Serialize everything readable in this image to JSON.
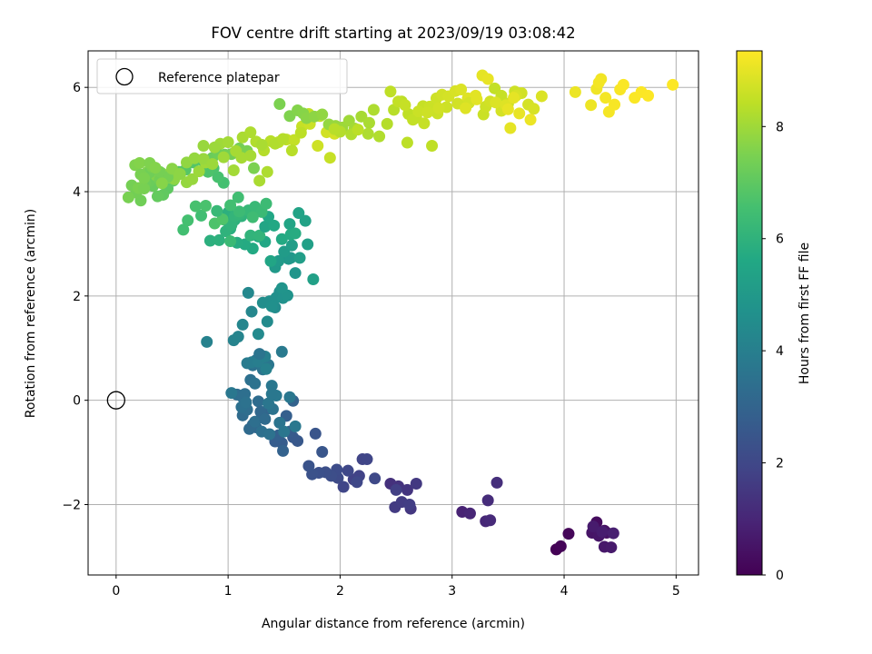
{
  "chart_data": {
    "type": "scatter",
    "title": "FOV centre drift starting at 2023/09/19 03:08:42",
    "xlabel": "Angular distance from reference (arcmin)",
    "ylabel": "Rotation from reference (arcmin)",
    "xlim": [
      -0.25,
      5.2
    ],
    "ylim": [
      -3.35,
      6.7
    ],
    "xticks": [
      0,
      1,
      2,
      3,
      4,
      5
    ],
    "yticks": [
      -2,
      0,
      2,
      4,
      6
    ],
    "ytick_labels": [
      "−2",
      "0",
      "2",
      "4",
      "6"
    ],
    "grid": true,
    "legend": {
      "position": "top-left",
      "entries": [
        "Reference platepar"
      ]
    },
    "reference_point": {
      "label": "Reference platepar",
      "x": 0.0,
      "y": 0.0,
      "marker": "open-circle"
    },
    "colorbar": {
      "label": "Hours from first FF file",
      "range": [
        0,
        9.35
      ],
      "ticks": [
        0,
        2,
        4,
        6,
        8
      ],
      "colormap": "viridis"
    },
    "series": [
      {
        "x": [
          3.93,
          3.97,
          4.04,
          4.27,
          4.29,
          4.33,
          4.36,
          4.38,
          4.25,
          4.31,
          4.36,
          4.42,
          4.26,
          4.34,
          4.44
        ],
        "y": [
          -2.86,
          -2.8,
          -2.56,
          -2.5,
          -2.34,
          -2.55,
          -2.5,
          -2.54,
          -2.54,
          -2.6,
          -2.81,
          -2.82,
          -2.42,
          -2.52,
          -2.55
        ],
        "c": [
          0.02,
          0.08,
          0.15,
          0.22,
          0.28,
          0.34,
          0.4,
          0.46,
          0.5,
          0.56,
          0.62,
          0.66,
          0.7,
          0.76,
          0.82
        ]
      },
      {
        "x": [
          3.09,
          3.16,
          3.3,
          3.34,
          3.32,
          3.4,
          2.45,
          2.52,
          2.6,
          2.63,
          2.68,
          2.49,
          2.55,
          2.62,
          2.5
        ],
        "y": [
          -2.14,
          -2.17,
          -2.32,
          -2.3,
          -1.92,
          -1.58,
          -1.6,
          -1.65,
          -1.72,
          -2.08,
          -1.6,
          -2.05,
          -1.95,
          -2.0,
          -1.72
        ],
        "c": [
          0.9,
          0.98,
          1.06,
          1.12,
          1.18,
          1.25,
          1.32,
          1.38,
          1.44,
          1.5,
          1.55,
          1.6,
          1.65,
          1.7,
          1.75
        ]
      },
      {
        "x": [
          2.12,
          2.17,
          2.2,
          2.24,
          2.15,
          2.31,
          1.98,
          1.97,
          1.92,
          1.87,
          1.81,
          1.75,
          1.72,
          1.78,
          1.84,
          2.03,
          2.07
        ],
        "y": [
          -1.52,
          -1.45,
          -1.13,
          -1.13,
          -1.57,
          -1.5,
          -1.49,
          -1.33,
          -1.45,
          -1.38,
          -1.39,
          -1.42,
          -1.26,
          -0.64,
          -0.99,
          -1.66,
          -1.35
        ],
        "c": [
          1.8,
          1.85,
          1.9,
          1.95,
          2.0,
          2.05,
          2.1,
          2.15,
          2.2,
          2.25,
          2.3,
          2.35,
          2.4,
          2.45,
          2.5,
          1.95,
          2.0
        ]
      },
      {
        "x": [
          1.62,
          1.58,
          1.55,
          1.48,
          1.42,
          1.52,
          1.45,
          1.49,
          1.58,
          1.36,
          1.3,
          1.25,
          1.22,
          1.19,
          1.13,
          1.27,
          1.17,
          1.24,
          1.3,
          1.37,
          1.4,
          1.46,
          1.5,
          1.55,
          1.6,
          1.29,
          1.33
        ],
        "y": [
          -0.78,
          -0.71,
          -0.6,
          -0.82,
          -0.79,
          -0.3,
          -0.67,
          -0.97,
          -0.01,
          -0.16,
          -0.33,
          -0.52,
          -0.47,
          -0.55,
          -0.29,
          -0.02,
          -0.18,
          -0.41,
          -0.6,
          -0.65,
          -0.17,
          -0.43,
          -0.6,
          0.06,
          -0.5,
          -0.22,
          -0.36
        ],
        "c": [
          2.55,
          2.6,
          2.65,
          2.7,
          2.75,
          2.8,
          2.85,
          2.9,
          2.95,
          3.0,
          3.05,
          3.1,
          3.15,
          3.2,
          3.25,
          3.3,
          3.35,
          3.4,
          3.45,
          3.5,
          3.55,
          3.6,
          3.65,
          3.7,
          3.75,
          3.15,
          3.25
        ]
      },
      {
        "x": [
          1.08,
          1.13,
          1.15,
          1.2,
          1.22,
          1.25,
          1.31,
          1.36,
          1.39,
          1.43,
          1.48,
          1.17,
          1.21,
          1.27,
          1.33,
          1.34,
          1.03,
          1.12,
          1.16,
          1.24,
          1.28,
          1.36,
          1.39
        ],
        "y": [
          0.11,
          0.06,
          0.12,
          0.39,
          0.67,
          0.77,
          0.59,
          0.68,
          0.28,
          0.09,
          0.93,
          0.71,
          0.73,
          0.74,
          0.84,
          0.6,
          0.14,
          -0.13,
          -0.04,
          0.32,
          0.89,
          -0.06,
          0.12
        ],
        "c": [
          3.3,
          3.35,
          3.4,
          3.45,
          3.5,
          3.55,
          3.6,
          3.65,
          3.7,
          3.75,
          3.8,
          3.85,
          3.9,
          3.95,
          4.0,
          4.05,
          3.7,
          3.45,
          3.5,
          3.55,
          3.6,
          3.65,
          3.7
        ]
      },
      {
        "x": [
          0.81,
          1.05,
          1.09,
          1.13,
          1.21,
          1.18,
          1.27,
          1.35,
          1.42,
          1.46,
          1.37,
          1.43,
          1.49,
          1.53,
          1.48,
          1.6,
          1.54,
          1.56,
          1.31,
          1.39
        ],
        "y": [
          1.12,
          1.15,
          1.22,
          1.45,
          1.7,
          2.06,
          1.27,
          1.51,
          1.78,
          2.08,
          1.9,
          1.97,
          1.96,
          2.01,
          2.15,
          2.44,
          2.71,
          2.73,
          1.87,
          1.8
        ],
        "c": [
          4.1,
          4.15,
          4.2,
          4.25,
          4.3,
          4.35,
          4.4,
          4.45,
          4.5,
          4.55,
          4.6,
          4.65,
          4.7,
          4.75,
          4.8,
          4.85,
          4.9,
          4.95,
          4.55,
          4.65
        ]
      },
      {
        "x": [
          1.42,
          1.45,
          1.5,
          1.57,
          1.64,
          1.71,
          1.76,
          1.69,
          1.63,
          1.55,
          1.38,
          1.33,
          1.27,
          1.22,
          1.15,
          1.08,
          1.02,
          0.97,
          1.0,
          1.06,
          1.12,
          1.2,
          1.28,
          1.33,
          1.36,
          1.41,
          1.48,
          1.56,
          1.6
        ],
        "y": [
          2.55,
          2.67,
          2.85,
          2.97,
          2.73,
          2.99,
          2.32,
          3.44,
          3.59,
          3.38,
          2.67,
          3.04,
          3.14,
          2.91,
          2.99,
          3.02,
          3.29,
          3.46,
          3.6,
          3.46,
          3.53,
          3.16,
          3.16,
          3.33,
          3.52,
          3.35,
          3.09,
          3.18,
          3.2
        ],
        "c": [
          5.0,
          5.05,
          5.1,
          5.15,
          5.2,
          5.25,
          5.3,
          5.35,
          5.4,
          5.45,
          5.5,
          5.55,
          5.6,
          5.65,
          5.7,
          5.75,
          5.8,
          5.85,
          5.9,
          5.95,
          6.0,
          6.05,
          6.1,
          5.5,
          5.55,
          5.6,
          5.65,
          5.7,
          5.75
        ]
      },
      {
        "x": [
          0.84,
          0.92,
          0.98,
          1.03,
          1.06,
          1.1,
          1.18,
          1.24,
          1.3,
          1.34,
          1.22,
          0.76,
          0.6,
          0.64,
          0.71,
          0.8,
          0.88,
          0.95,
          0.9,
          1.02,
          1.1
        ],
        "y": [
          3.06,
          3.07,
          3.24,
          3.36,
          3.53,
          3.57,
          3.64,
          3.71,
          3.61,
          3.77,
          3.51,
          3.54,
          3.27,
          3.45,
          3.72,
          3.73,
          3.39,
          3.47,
          3.63,
          3.05,
          3.62
        ],
        "c": [
          5.9,
          5.95,
          6.0,
          6.05,
          6.1,
          6.15,
          6.2,
          6.25,
          6.3,
          6.35,
          6.4,
          6.45,
          6.5,
          6.55,
          6.6,
          6.65,
          6.7,
          6.75,
          6.25,
          6.3,
          6.35
        ]
      },
      {
        "x": [
          1.09,
          1.02,
          0.96,
          0.91,
          0.87,
          0.82,
          0.77,
          0.69,
          0.62,
          0.56,
          0.51,
          0.46,
          0.42,
          0.37,
          0.33,
          0.3,
          0.26,
          0.22,
          0.18,
          0.14,
          0.11,
          0.2,
          0.28,
          0.36,
          0.41,
          0.47,
          0.52,
          0.57,
          0.63,
          0.68,
          0.74,
          0.8,
          0.86,
          0.91,
          0.97,
          1.03,
          1.1,
          1.17,
          1.23,
          0.3,
          0.39,
          0.46,
          0.25,
          0.32,
          0.17,
          0.21
        ],
        "y": [
          3.89,
          3.74,
          4.17,
          4.28,
          4.45,
          4.38,
          4.6,
          4.56,
          4.42,
          4.38,
          4.21,
          4.06,
          3.94,
          3.91,
          4.11,
          4.2,
          4.17,
          3.83,
          3.98,
          4.12,
          3.89,
          4.07,
          4.38,
          4.31,
          4.35,
          4.27,
          4.24,
          4.34,
          4.18,
          4.24,
          4.39,
          4.56,
          4.65,
          4.73,
          4.71,
          4.72,
          4.83,
          4.78,
          4.45,
          4.37,
          4.23,
          4.28,
          4.06,
          4.48,
          4.51,
          4.55
        ],
        "c": [
          6.45,
          6.5,
          6.55,
          6.6,
          6.65,
          6.7,
          6.75,
          6.8,
          6.85,
          6.9,
          6.95,
          7.0,
          7.05,
          7.1,
          7.15,
          7.2,
          7.25,
          7.3,
          7.35,
          7.4,
          7.45,
          7.5,
          7.55,
          7.6,
          7.65,
          7.7,
          7.75,
          7.8,
          7.85,
          7.9,
          7.95,
          8.0,
          7.2,
          7.25,
          7.3,
          7.35,
          7.4,
          7.45,
          7.5,
          7.3,
          7.35,
          7.4,
          7.45,
          7.5,
          7.55,
          7.6
        ]
      },
      {
        "x": [
          0.39,
          0.22,
          0.25,
          0.3,
          0.35,
          0.41,
          0.5,
          0.57,
          0.63,
          0.7,
          0.78,
          0.86,
          0.93,
          1.0,
          1.07,
          1.13,
          1.2,
          1.25,
          1.32,
          1.38,
          1.45,
          1.52,
          1.59,
          1.66,
          1.73,
          1.8,
          1.88,
          1.95,
          0.78,
          0.88,
          0.96,
          1.05,
          1.12,
          1.28,
          1.35,
          1.42,
          1.49,
          1.57,
          1.65,
          1.72,
          1.82,
          1.91,
          1.2,
          1.3
        ],
        "y": [
          4.38,
          4.33,
          4.26,
          4.55,
          4.46,
          4.16,
          4.44,
          4.34,
          4.56,
          4.64,
          4.63,
          4.53,
          4.92,
          4.95,
          4.78,
          5.04,
          5.14,
          4.96,
          4.79,
          4.97,
          4.95,
          5.0,
          4.99,
          5.25,
          5.3,
          4.88,
          5.14,
          5.11,
          4.88,
          4.85,
          4.66,
          4.41,
          4.65,
          4.21,
          4.38,
          4.92,
          5.01,
          4.79,
          5.13,
          5.49,
          5.45,
          4.65,
          4.69,
          4.9
        ],
        "c": [
          7.4,
          7.45,
          7.5,
          7.55,
          7.6,
          7.65,
          7.7,
          7.75,
          7.8,
          7.85,
          7.9,
          7.95,
          8.0,
          8.05,
          8.1,
          8.15,
          8.2,
          8.25,
          8.3,
          8.35,
          8.4,
          8.45,
          8.5,
          8.55,
          8.6,
          8.65,
          8.7,
          8.75,
          7.9,
          7.95,
          8.0,
          8.05,
          8.1,
          8.15,
          8.2,
          8.25,
          8.3,
          8.35,
          8.4,
          8.45,
          8.5,
          8.55,
          8.1,
          8.15
        ]
      },
      {
        "x": [
          1.46,
          1.55,
          1.62,
          1.67,
          1.7,
          1.77,
          1.84,
          1.9,
          1.96,
          2.02,
          2.08,
          2.13,
          2.19,
          2.26,
          2.3,
          2.35,
          2.42,
          2.48,
          2.55,
          2.61,
          2.68,
          2.74,
          2.8,
          2.86,
          2.91,
          2.97,
          3.03,
          3.08,
          3.14,
          3.21,
          3.27,
          3.32,
          3.38,
          3.44,
          3.5,
          3.56,
          3.62,
          3.68,
          3.73,
          3.8,
          3.28,
          3.3,
          3.34,
          3.44,
          3.57,
          3.39,
          3.48,
          2.6,
          2.82,
          2.65,
          2.75,
          2.87,
          2.95,
          3.05,
          3.15,
          2.25,
          2.1,
          2.0,
          1.95,
          2.16,
          2.45,
          2.52,
          2.58,
          2.7,
          2.78,
          2.88,
          3.12,
          3.22,
          3.55,
          3.6,
          3.7
        ],
        "y": [
          5.68,
          5.45,
          5.56,
          5.5,
          5.41,
          5.44,
          5.48,
          5.29,
          5.26,
          5.23,
          5.36,
          5.21,
          5.44,
          5.32,
          5.57,
          5.06,
          5.3,
          5.57,
          5.73,
          5.49,
          5.42,
          5.64,
          5.63,
          5.79,
          5.86,
          5.83,
          5.93,
          5.96,
          5.79,
          5.84,
          6.23,
          6.16,
          5.98,
          5.84,
          5.69,
          5.92,
          5.89,
          5.67,
          5.59,
          5.83,
          5.48,
          5.63,
          5.73,
          5.55,
          5.84,
          5.71,
          5.66,
          4.94,
          4.88,
          5.38,
          5.31,
          5.5,
          5.62,
          5.69,
          5.7,
          5.11,
          5.1,
          5.15,
          5.2,
          5.19,
          5.92,
          5.73,
          5.66,
          5.54,
          5.52,
          5.6,
          5.6,
          5.77,
          5.8,
          5.5,
          5.38
        ],
        "c": [
          7.5,
          7.55,
          7.6,
          7.65,
          7.7,
          7.75,
          7.8,
          7.85,
          7.9,
          7.95,
          8.0,
          8.05,
          8.1,
          8.15,
          8.2,
          8.25,
          8.3,
          8.35,
          8.4,
          8.45,
          8.5,
          8.55,
          8.6,
          8.65,
          8.7,
          8.75,
          8.8,
          8.85,
          8.9,
          8.95,
          9.0,
          9.05,
          8.5,
          8.55,
          8.6,
          8.65,
          8.7,
          8.75,
          8.8,
          8.85,
          8.6,
          8.65,
          8.7,
          8.75,
          8.8,
          8.85,
          8.9,
          8.4,
          8.45,
          8.5,
          8.55,
          8.6,
          8.65,
          8.7,
          8.75,
          8.2,
          8.25,
          8.3,
          8.35,
          8.4,
          8.45,
          8.5,
          8.55,
          8.6,
          8.65,
          8.7,
          8.9,
          8.95,
          9.0,
          9.05,
          9.1
        ]
      },
      {
        "x": [
          4.1,
          4.24,
          4.29,
          4.33,
          4.31,
          4.37,
          4.4,
          4.45,
          4.5,
          4.53,
          4.63,
          4.69,
          4.75,
          4.97,
          3.52,
          3.5
        ],
        "y": [
          5.91,
          5.66,
          5.97,
          6.16,
          6.09,
          5.8,
          5.53,
          5.67,
          5.96,
          6.05,
          5.8,
          5.91,
          5.84,
          6.05,
          5.22,
          5.58
        ],
        "c": [
          9.1,
          9.12,
          9.15,
          9.17,
          9.2,
          9.22,
          9.24,
          9.26,
          9.28,
          9.3,
          9.31,
          9.32,
          9.33,
          9.34,
          9.0,
          9.05
        ]
      }
    ]
  }
}
